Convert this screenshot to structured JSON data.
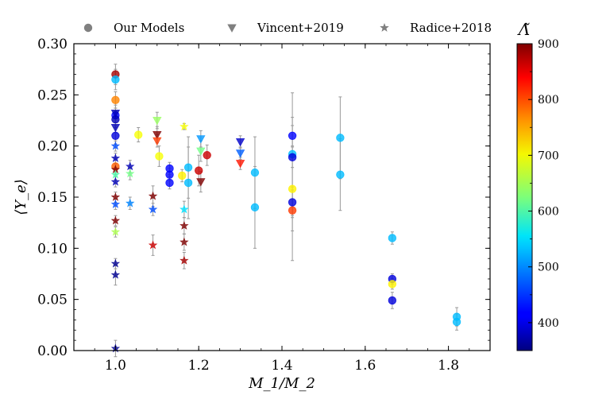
{
  "chart_data": {
    "type": "scatter",
    "xlabel": "M_1/M_2",
    "ylabel": "⟨Y_e⟩",
    "xlim": [
      0.9,
      1.9
    ],
    "ylim": [
      0.0,
      0.3
    ],
    "x_ticks": [
      "1.0",
      "1.2",
      "1.4",
      "1.6",
      "1.8"
    ],
    "y_ticks": [
      "0.00",
      "0.05",
      "0.10",
      "0.15",
      "0.20",
      "0.25",
      "0.30"
    ],
    "x_tick_values": [
      1.0,
      1.2,
      1.4,
      1.6,
      1.8
    ],
    "y_tick_values": [
      0.0,
      0.05,
      0.1,
      0.15,
      0.2,
      0.25,
      0.3
    ],
    "colorbar": {
      "label": "Λ̃",
      "range": [
        350,
        900
      ],
      "ticks": [
        "400",
        "500",
        "600",
        "700",
        "800",
        "900"
      ],
      "tick_values": [
        400,
        500,
        600,
        700,
        800,
        900
      ],
      "colormap": "jet"
    },
    "legend": {
      "placement": "top",
      "entries": [
        {
          "label": "Our Models",
          "marker": "circle"
        },
        {
          "label": "Vincent+2019",
          "marker": "triangle-down"
        },
        {
          "label": "Radice+2018",
          "marker": "star"
        }
      ]
    },
    "series": [
      {
        "name": "Our Models",
        "marker": "circle",
        "points": [
          {
            "x": 1.0,
            "y": 0.27,
            "err": 0.01,
            "c": 880
          },
          {
            "x": 1.0,
            "y": 0.265,
            "err": 0.01,
            "c": 520
          },
          {
            "x": 1.0,
            "y": 0.245,
            "err": 0.008,
            "c": 760
          },
          {
            "x": 1.0,
            "y": 0.23,
            "err": 0.01,
            "c": 420
          },
          {
            "x": 1.0,
            "y": 0.226,
            "err": 0.008,
            "c": 380
          },
          {
            "x": 1.0,
            "y": 0.21,
            "err": 0.008,
            "c": 400
          },
          {
            "x": 1.0,
            "y": 0.18,
            "err": 0.008,
            "c": 780
          },
          {
            "x": 1.055,
            "y": 0.211,
            "err": 0.007,
            "c": 690
          },
          {
            "x": 1.105,
            "y": 0.19,
            "err": 0.01,
            "c": 690
          },
          {
            "x": 1.13,
            "y": 0.178,
            "err": 0.006,
            "c": 420
          },
          {
            "x": 1.13,
            "y": 0.172,
            "err": 0.006,
            "c": 420
          },
          {
            "x": 1.13,
            "y": 0.164,
            "err": 0.006,
            "c": 420
          },
          {
            "x": 1.16,
            "y": 0.171,
            "err": 0.006,
            "c": 700
          },
          {
            "x": 1.175,
            "y": 0.179,
            "err": 0.03,
            "c": 520
          },
          {
            "x": 1.175,
            "y": 0.164,
            "err": 0.035,
            "c": 520
          },
          {
            "x": 1.2,
            "y": 0.176,
            "err": 0.015,
            "c": 860
          },
          {
            "x": 1.22,
            "y": 0.191,
            "err": 0.01,
            "c": 860
          },
          {
            "x": 1.335,
            "y": 0.174,
            "err": 0.035,
            "c": 520
          },
          {
            "x": 1.335,
            "y": 0.14,
            "err": 0.04,
            "c": 520
          },
          {
            "x": 1.425,
            "y": 0.21,
            "err": 0.01,
            "c": 420
          },
          {
            "x": 1.425,
            "y": 0.192,
            "err": 0.06,
            "c": 520
          },
          {
            "x": 1.425,
            "y": 0.189,
            "err": 0.01,
            "c": 400
          },
          {
            "x": 1.425,
            "y": 0.158,
            "err": 0.07,
            "c": 700
          },
          {
            "x": 1.425,
            "y": 0.145,
            "err": 0.015,
            "c": 400
          },
          {
            "x": 1.425,
            "y": 0.137,
            "err": 0.02,
            "c": 800
          },
          {
            "x": 1.54,
            "y": 0.208,
            "err": 0.04,
            "c": 520
          },
          {
            "x": 1.54,
            "y": 0.172,
            "err": 0.035,
            "c": 520
          },
          {
            "x": 1.665,
            "y": 0.11,
            "err": 0.006,
            "c": 520
          },
          {
            "x": 1.665,
            "y": 0.07,
            "err": 0.005,
            "c": 400
          },
          {
            "x": 1.665,
            "y": 0.065,
            "err": 0.005,
            "c": 700
          },
          {
            "x": 1.665,
            "y": 0.049,
            "err": 0.008,
            "c": 400
          },
          {
            "x": 1.82,
            "y": 0.033,
            "err": 0.009,
            "c": 520
          },
          {
            "x": 1.82,
            "y": 0.028,
            "err": 0.008,
            "c": 520
          }
        ]
      },
      {
        "name": "Vincent+2019",
        "marker": "triangle-down",
        "points": [
          {
            "x": 1.0,
            "y": 0.232,
            "err": 0.005,
            "c": 380
          },
          {
            "x": 1.0,
            "y": 0.218,
            "err": 0.005,
            "c": 380
          },
          {
            "x": 1.1,
            "y": 0.225,
            "err": 0.008,
            "c": 640
          },
          {
            "x": 1.1,
            "y": 0.211,
            "err": 0.008,
            "c": 900
          },
          {
            "x": 1.1,
            "y": 0.205,
            "err": 0.006,
            "c": 800
          },
          {
            "x": 1.205,
            "y": 0.207,
            "err": 0.008,
            "c": 500
          },
          {
            "x": 1.205,
            "y": 0.195,
            "err": 0.01,
            "c": 620
          },
          {
            "x": 1.205,
            "y": 0.165,
            "err": 0.01,
            "c": 900
          },
          {
            "x": 1.3,
            "y": 0.204,
            "err": 0.006,
            "c": 390
          },
          {
            "x": 1.3,
            "y": 0.193,
            "err": 0.006,
            "c": 470
          },
          {
            "x": 1.3,
            "y": 0.183,
            "err": 0.006,
            "c": 820
          }
        ]
      },
      {
        "name": "Radice+2018",
        "marker": "star",
        "points": [
          {
            "x": 1.0,
            "y": 0.2,
            "err": 0.005,
            "c": 460
          },
          {
            "x": 1.0,
            "y": 0.188,
            "err": 0.005,
            "c": 380
          },
          {
            "x": 1.0,
            "y": 0.177,
            "err": 0.005,
            "c": 900
          },
          {
            "x": 1.0,
            "y": 0.172,
            "err": 0.005,
            "c": 600
          },
          {
            "x": 1.0,
            "y": 0.165,
            "err": 0.005,
            "c": 380
          },
          {
            "x": 1.0,
            "y": 0.15,
            "err": 0.005,
            "c": 900
          },
          {
            "x": 1.0,
            "y": 0.143,
            "err": 0.005,
            "c": 460
          },
          {
            "x": 1.0,
            "y": 0.127,
            "err": 0.005,
            "c": 900
          },
          {
            "x": 1.0,
            "y": 0.116,
            "err": 0.005,
            "c": 650
          },
          {
            "x": 1.0,
            "y": 0.085,
            "err": 0.005,
            "c": 360
          },
          {
            "x": 1.0,
            "y": 0.074,
            "err": 0.01,
            "c": 360
          },
          {
            "x": 1.0,
            "y": 0.002,
            "err": 0.008,
            "c": 360
          },
          {
            "x": 1.035,
            "y": 0.18,
            "err": 0.006,
            "c": 380
          },
          {
            "x": 1.035,
            "y": 0.173,
            "err": 0.006,
            "c": 620
          },
          {
            "x": 1.035,
            "y": 0.144,
            "err": 0.006,
            "c": 490
          },
          {
            "x": 1.09,
            "y": 0.151,
            "err": 0.01,
            "c": 900
          },
          {
            "x": 1.09,
            "y": 0.138,
            "err": 0.006,
            "c": 460
          },
          {
            "x": 1.09,
            "y": 0.103,
            "err": 0.01,
            "c": 860
          },
          {
            "x": 1.165,
            "y": 0.219,
            "err": 0.003,
            "c": 690
          },
          {
            "x": 1.165,
            "y": 0.138,
            "err": 0.008,
            "c": 540
          },
          {
            "x": 1.165,
            "y": 0.122,
            "err": 0.008,
            "c": 900
          },
          {
            "x": 1.165,
            "y": 0.106,
            "err": 0.008,
            "c": 900
          },
          {
            "x": 1.165,
            "y": 0.088,
            "err": 0.008,
            "c": 880
          }
        ]
      }
    ]
  }
}
